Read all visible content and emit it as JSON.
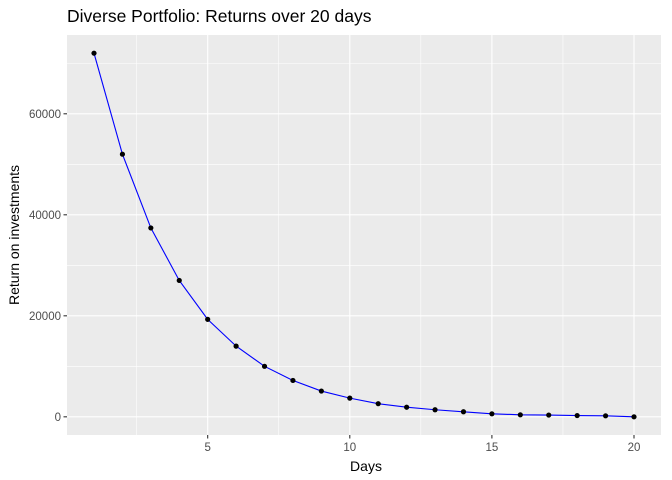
{
  "chart_data": {
    "type": "line",
    "title": "Diverse Portfolio: Returns over 20 days",
    "xlabel": "Days",
    "ylabel": "Return on investments",
    "xlim": [
      0.05,
      20.95
    ],
    "ylim": [
      -3600,
      75600
    ],
    "x_ticks": [
      5,
      10,
      15,
      20
    ],
    "x_tick_labels": [
      "5",
      "10",
      "15",
      "20"
    ],
    "y_ticks": [
      0,
      20000,
      40000,
      60000
    ],
    "y_tick_labels": [
      "0",
      "20000",
      "40000",
      "60000"
    ],
    "x_minor": [
      2.5,
      7.5,
      12.5,
      17.5
    ],
    "y_minor": [
      10000,
      30000,
      50000,
      70000
    ],
    "grid": true,
    "legend": "none",
    "panel_background": "#ebebeb",
    "grid_color": "#ffffff",
    "line_color": "#0000ff",
    "point_color": "#000000",
    "series": [
      {
        "x": [
          1,
          2,
          3,
          4,
          5,
          6,
          7,
          8,
          9,
          10,
          11,
          12,
          13,
          14,
          15,
          16,
          17,
          18,
          19,
          20
        ],
        "values": [
          72000,
          52000,
          37400,
          27000,
          19300,
          14000,
          10000,
          7200,
          5100,
          3700,
          2600,
          1900,
          1400,
          1000,
          600,
          400,
          350,
          250,
          200,
          0
        ]
      }
    ]
  }
}
